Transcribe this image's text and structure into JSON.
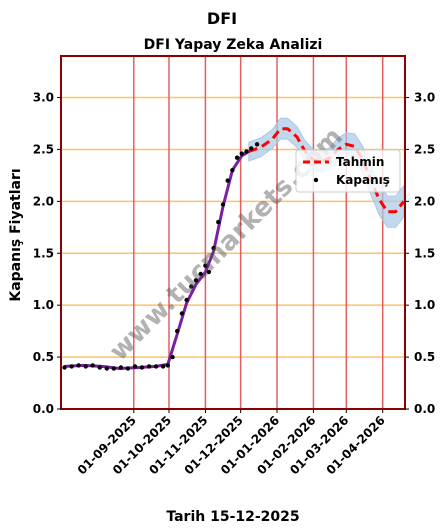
{
  "page": {
    "title": "DFI",
    "date_caption": "Tarih 15-12-2025",
    "watermark": "www.tucmarkets.com"
  },
  "chart_data": {
    "type": "line",
    "title": "DFI Yapay Zeka Analizi",
    "xlabel": "",
    "ylabel": "Kapanış Fiyatları",
    "xlim": [
      "2025-07-01",
      "2026-04-20"
    ],
    "ylim": [
      0,
      3.4
    ],
    "y_ticks": [
      0.0,
      0.5,
      1.0,
      1.5,
      2.0,
      2.5,
      3.0
    ],
    "y_tick_labels": [
      "0.0",
      "0.5",
      "1.0",
      "1.5",
      "2.0",
      "2.5",
      "3.0"
    ],
    "x_ticks": [
      "2025-09-01",
      "2025-10-01",
      "2025-11-01",
      "2025-12-01",
      "2026-01-01",
      "2026-02-01",
      "2026-03-01",
      "2026-04-01"
    ],
    "x_tick_labels": [
      "01-09-2025",
      "01-10-2025",
      "01-11-2025",
      "01-12-2025",
      "01-01-2026",
      "01-02-2026",
      "01-03-2026",
      "01-04-2026"
    ],
    "grid": true,
    "legend_position": "upper-right",
    "colors": {
      "frame": "#8b0000",
      "hgrid": "#ffc266",
      "vgrid": "#e06060",
      "close_points": "#000000",
      "close_line": "#7b1fa2",
      "band": "#a8c8e6",
      "forecast": "#ff0000"
    },
    "series": [
      {
        "name": "Kapanış",
        "style": "points",
        "x": [
          "2025-07-04",
          "2025-07-10",
          "2025-07-16",
          "2025-07-22",
          "2025-07-28",
          "2025-08-03",
          "2025-08-09",
          "2025-08-15",
          "2025-08-21",
          "2025-08-27",
          "2025-09-02",
          "2025-09-08",
          "2025-09-14",
          "2025-09-20",
          "2025-09-26",
          "2025-09-30",
          "2025-10-04",
          "2025-10-08",
          "2025-10-12",
          "2025-10-16",
          "2025-10-20",
          "2025-10-24",
          "2025-10-28",
          "2025-11-01",
          "2025-11-04",
          "2025-11-08",
          "2025-11-12",
          "2025-11-16",
          "2025-11-20",
          "2025-11-24",
          "2025-11-28",
          "2025-12-02",
          "2025-12-06",
          "2025-12-10",
          "2025-12-15"
        ],
        "y": [
          0.4,
          0.41,
          0.42,
          0.41,
          0.42,
          0.4,
          0.39,
          0.39,
          0.4,
          0.39,
          0.41,
          0.4,
          0.41,
          0.41,
          0.41,
          0.42,
          0.5,
          0.75,
          0.92,
          1.05,
          1.18,
          1.24,
          1.3,
          1.38,
          1.32,
          1.55,
          1.8,
          1.97,
          2.2,
          2.3,
          2.42,
          2.46,
          2.48,
          2.51,
          2.55
        ]
      },
      {
        "name": "Kapanış (trend)",
        "style": "line",
        "x": [
          "2025-07-04",
          "2025-07-20",
          "2025-08-05",
          "2025-08-20",
          "2025-09-05",
          "2025-09-20",
          "2025-09-30",
          "2025-10-08",
          "2025-10-16",
          "2025-10-24",
          "2025-11-01",
          "2025-11-08",
          "2025-11-16",
          "2025-11-24",
          "2025-12-02",
          "2025-12-08"
        ],
        "y": [
          0.41,
          0.42,
          0.41,
          0.39,
          0.4,
          0.41,
          0.43,
          0.72,
          1.02,
          1.2,
          1.32,
          1.52,
          1.95,
          2.3,
          2.44,
          2.48
        ]
      },
      {
        "name": "Tahmin",
        "style": "dashed",
        "x": [
          "2025-12-08",
          "2025-12-18",
          "2025-12-28",
          "2026-01-04",
          "2026-01-10",
          "2026-01-18",
          "2026-01-25",
          "2026-02-01",
          "2026-02-08",
          "2026-02-15",
          "2026-02-22",
          "2026-03-01",
          "2026-03-08",
          "2026-03-15",
          "2026-03-22",
          "2026-03-29",
          "2026-04-05",
          "2026-04-12",
          "2026-04-19"
        ],
        "y": [
          2.48,
          2.52,
          2.6,
          2.7,
          2.7,
          2.62,
          2.48,
          2.4,
          2.38,
          2.42,
          2.5,
          2.55,
          2.53,
          2.4,
          2.2,
          2.02,
          1.9,
          1.9,
          2.0
        ],
        "band": [
          0.09,
          0.09,
          0.09,
          0.1,
          0.1,
          0.1,
          0.1,
          0.1,
          0.1,
          0.1,
          0.11,
          0.11,
          0.12,
          0.13,
          0.14,
          0.15,
          0.15,
          0.15,
          0.15
        ]
      }
    ]
  }
}
